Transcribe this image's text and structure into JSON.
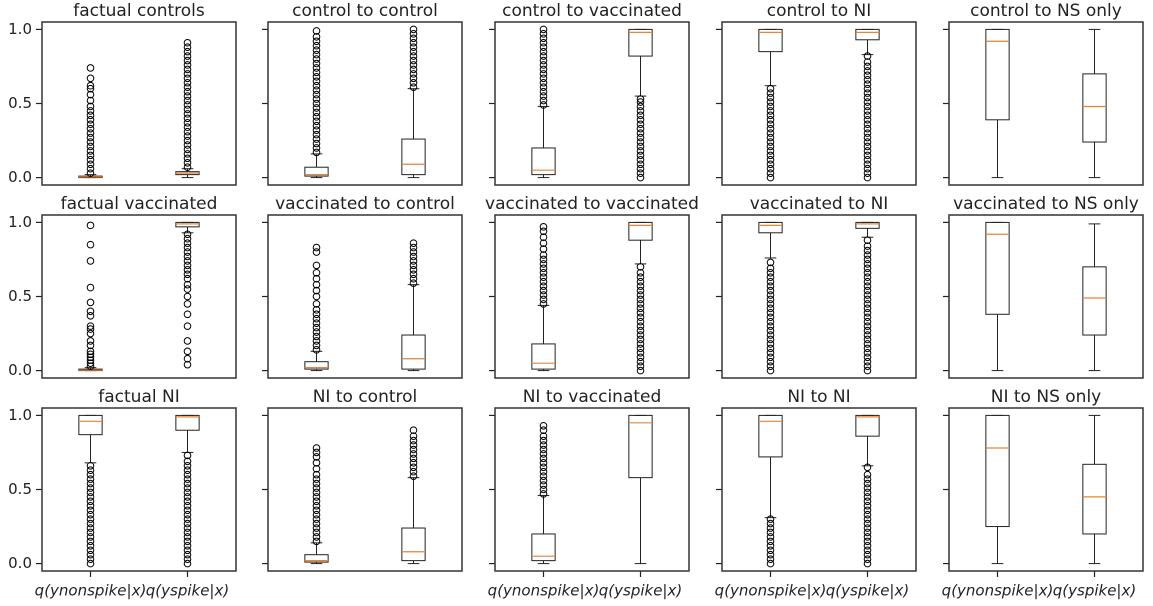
{
  "chart_data": [
    {
      "type": "box",
      "title": "factual controls",
      "categories": [
        null,
        null
      ],
      "ylim": [
        -0.05,
        1.05
      ],
      "yticks": [
        {
          "value": 0,
          "label": "0.0"
        },
        {
          "value": 0.5,
          "label": "0.5"
        },
        {
          "value": 1,
          "label": "1.0"
        }
      ],
      "box_color": "#222222",
      "median_color": "#e8833a",
      "boxes": [
        {
          "whislo": 0,
          "q1": 0,
          "med": 0.005,
          "q3": 0.01,
          "whishi": 0.02,
          "fliers": [
            0.03,
            0.06,
            0.09,
            0.12,
            0.15,
            0.18,
            0.21,
            0.24,
            0.27,
            0.3,
            0.33,
            0.36,
            0.39,
            0.42,
            0.45,
            0.48,
            0.52,
            0.56,
            0.6,
            0.62,
            0.67,
            0.74
          ]
        },
        {
          "whislo": 0,
          "q1": 0.02,
          "med": 0.03,
          "q3": 0.04,
          "whishi": 0.06,
          "fliers": [
            0.07,
            0.1,
            0.13,
            0.16,
            0.19,
            0.22,
            0.25,
            0.28,
            0.31,
            0.34,
            0.37,
            0.4,
            0.43,
            0.46,
            0.49,
            0.52,
            0.55,
            0.58,
            0.61,
            0.64,
            0.67,
            0.7,
            0.73,
            0.76,
            0.79,
            0.82,
            0.85,
            0.88,
            0.91
          ]
        }
      ]
    },
    {
      "type": "box",
      "title": "control to control",
      "categories": [
        null,
        null
      ],
      "ylim": [
        -0.05,
        1.05
      ],
      "yticks": [
        0,
        0.5,
        1
      ],
      "box_color": "#222222",
      "median_color": "#e8833a",
      "boxes": [
        {
          "whislo": 0,
          "q1": 0.01,
          "med": 0.02,
          "q3": 0.07,
          "whishi": 0.16,
          "fliers": [
            0.17,
            0.2,
            0.23,
            0.26,
            0.29,
            0.32,
            0.35,
            0.38,
            0.41,
            0.44,
            0.47,
            0.5,
            0.53,
            0.56,
            0.59,
            0.62,
            0.65,
            0.68,
            0.71,
            0.74,
            0.77,
            0.8,
            0.83,
            0.86,
            0.89,
            0.92,
            0.95,
            0.99
          ]
        },
        {
          "whislo": 0,
          "q1": 0.02,
          "med": 0.09,
          "q3": 0.26,
          "whishi": 0.6,
          "fliers": [
            0.61,
            0.64,
            0.67,
            0.7,
            0.73,
            0.76,
            0.79,
            0.82,
            0.85,
            0.88,
            0.91,
            0.94,
            0.97,
            1
          ]
        }
      ]
    },
    {
      "type": "box",
      "title": "control to vaccinated",
      "categories": [
        null,
        null
      ],
      "ylim": [
        -0.05,
        1.05
      ],
      "yticks": [
        0,
        0.5,
        1
      ],
      "box_color": "#222222",
      "median_color": "#e8833a",
      "boxes": [
        {
          "whislo": 0,
          "q1": 0.02,
          "med": 0.05,
          "q3": 0.2,
          "whishi": 0.48,
          "fliers": [
            0.49,
            0.52,
            0.55,
            0.58,
            0.61,
            0.64,
            0.67,
            0.7,
            0.73,
            0.76,
            0.79,
            0.82,
            0.85,
            0.88,
            0.91,
            0.94,
            0.97,
            1
          ]
        },
        {
          "whislo": 0.55,
          "q1": 0.82,
          "med": 0.98,
          "q3": 1,
          "whishi": 1,
          "fliers": [
            0,
            0.03,
            0.06,
            0.09,
            0.12,
            0.15,
            0.18,
            0.21,
            0.24,
            0.27,
            0.3,
            0.33,
            0.36,
            0.39,
            0.42,
            0.45,
            0.48,
            0.51,
            0.53
          ]
        }
      ]
    },
    {
      "type": "box",
      "title": "control to NI",
      "categories": [
        null,
        null
      ],
      "ylim": [
        -0.05,
        1.05
      ],
      "yticks": [
        0,
        0.5,
        1
      ],
      "box_color": "#222222",
      "median_color": "#e8833a",
      "boxes": [
        {
          "whislo": 0.62,
          "q1": 0.85,
          "med": 0.98,
          "q3": 1,
          "whishi": 1,
          "fliers": [
            0,
            0.03,
            0.06,
            0.09,
            0.12,
            0.15,
            0.18,
            0.21,
            0.24,
            0.27,
            0.3,
            0.33,
            0.36,
            0.39,
            0.42,
            0.45,
            0.48,
            0.51,
            0.54,
            0.57,
            0.6
          ]
        },
        {
          "whislo": 0.83,
          "q1": 0.93,
          "med": 0.98,
          "q3": 1,
          "whishi": 1,
          "fliers": [
            0,
            0.03,
            0.06,
            0.09,
            0.12,
            0.15,
            0.18,
            0.21,
            0.24,
            0.27,
            0.3,
            0.33,
            0.36,
            0.39,
            0.42,
            0.45,
            0.48,
            0.51,
            0.54,
            0.57,
            0.6,
            0.63,
            0.66,
            0.69,
            0.72,
            0.75,
            0.78,
            0.82
          ]
        }
      ]
    },
    {
      "type": "box",
      "title": "control to NS only",
      "categories": [
        null,
        null
      ],
      "ylim": [
        -0.05,
        1.05
      ],
      "yticks": [
        0,
        0.5,
        1
      ],
      "box_color": "#222222",
      "median_color": "#e8833a",
      "boxes": [
        {
          "whislo": 0,
          "q1": 0.39,
          "med": 0.92,
          "q3": 1,
          "whishi": 1,
          "fliers": []
        },
        {
          "whislo": 0,
          "q1": 0.24,
          "med": 0.48,
          "q3": 0.7,
          "whishi": 1,
          "fliers": []
        }
      ]
    },
    {
      "type": "box",
      "title": "factual vaccinated",
      "categories": [
        null,
        null
      ],
      "ylim": [
        -0.05,
        1.05
      ],
      "yticks": [
        {
          "value": 0,
          "label": "0.0"
        },
        {
          "value": 0.5,
          "label": "0.5"
        },
        {
          "value": 1,
          "label": "1.0"
        }
      ],
      "box_color": "#222222",
      "median_color": "#e8833a",
      "boxes": [
        {
          "whislo": 0,
          "q1": 0,
          "med": 0.003,
          "q3": 0.01,
          "whishi": 0.02,
          "fliers": [
            0.03,
            0.05,
            0.07,
            0.09,
            0.11,
            0.13,
            0.17,
            0.2,
            0.25,
            0.28,
            0.3,
            0.37,
            0.4,
            0.46,
            0.56,
            0.74,
            0.85,
            0.98
          ]
        },
        {
          "whislo": 0.93,
          "q1": 0.97,
          "med": 0.99,
          "q3": 1,
          "whishi": 1,
          "fliers": [
            0.04,
            0.08,
            0.13,
            0.2,
            0.3,
            0.38,
            0.45,
            0.5,
            0.55,
            0.58,
            0.62,
            0.65,
            0.68,
            0.71,
            0.74,
            0.77,
            0.8,
            0.83,
            0.86,
            0.89,
            0.92
          ]
        }
      ]
    },
    {
      "type": "box",
      "title": "vaccinated to control",
      "categories": [
        null,
        null
      ],
      "ylim": [
        -0.05,
        1.05
      ],
      "yticks": [
        0,
        0.5,
        1
      ],
      "box_color": "#222222",
      "median_color": "#e8833a",
      "boxes": [
        {
          "whislo": 0,
          "q1": 0.01,
          "med": 0.02,
          "q3": 0.06,
          "whishi": 0.13,
          "fliers": [
            0.14,
            0.17,
            0.2,
            0.23,
            0.26,
            0.29,
            0.32,
            0.35,
            0.38,
            0.41,
            0.45,
            0.5,
            0.54,
            0.58,
            0.62,
            0.66,
            0.71,
            0.8,
            0.83
          ]
        },
        {
          "whislo": 0,
          "q1": 0.01,
          "med": 0.08,
          "q3": 0.24,
          "whishi": 0.58,
          "fliers": [
            0.59,
            0.62,
            0.65,
            0.68,
            0.71,
            0.74,
            0.77,
            0.8,
            0.83,
            0.86
          ]
        }
      ]
    },
    {
      "type": "box",
      "title": "vaccinated to vaccinated",
      "categories": [
        null,
        null
      ],
      "ylim": [
        -0.05,
        1.05
      ],
      "yticks": [
        0,
        0.5,
        1
      ],
      "box_color": "#222222",
      "median_color": "#e8833a",
      "boxes": [
        {
          "whislo": 0,
          "q1": 0.01,
          "med": 0.05,
          "q3": 0.18,
          "whishi": 0.44,
          "fliers": [
            0.45,
            0.48,
            0.51,
            0.54,
            0.57,
            0.6,
            0.63,
            0.66,
            0.69,
            0.72,
            0.75,
            0.78,
            0.82,
            0.86,
            0.9,
            0.94,
            0.97
          ]
        },
        {
          "whislo": 0.72,
          "q1": 0.88,
          "med": 0.98,
          "q3": 1,
          "whishi": 1,
          "fliers": [
            0,
            0.03,
            0.06,
            0.09,
            0.12,
            0.15,
            0.18,
            0.21,
            0.24,
            0.27,
            0.3,
            0.33,
            0.36,
            0.39,
            0.42,
            0.45,
            0.48,
            0.51,
            0.54,
            0.57,
            0.6,
            0.63,
            0.66,
            0.7
          ]
        }
      ]
    },
    {
      "type": "box",
      "title": "vaccinated to NI",
      "categories": [
        null,
        null
      ],
      "ylim": [
        -0.05,
        1.05
      ],
      "yticks": [
        0,
        0.5,
        1
      ],
      "box_color": "#222222",
      "median_color": "#e8833a",
      "boxes": [
        {
          "whislo": 0.76,
          "q1": 0.93,
          "med": 0.98,
          "q3": 1,
          "whishi": 1,
          "fliers": [
            0,
            0.03,
            0.06,
            0.09,
            0.12,
            0.15,
            0.18,
            0.21,
            0.24,
            0.27,
            0.3,
            0.33,
            0.36,
            0.39,
            0.42,
            0.45,
            0.48,
            0.51,
            0.54,
            0.57,
            0.6,
            0.63,
            0.66,
            0.69,
            0.73
          ]
        },
        {
          "whislo": 0.9,
          "q1": 0.96,
          "med": 0.99,
          "q3": 1,
          "whishi": 1,
          "fliers": [
            0,
            0.03,
            0.06,
            0.09,
            0.12,
            0.15,
            0.18,
            0.21,
            0.24,
            0.27,
            0.3,
            0.33,
            0.36,
            0.39,
            0.42,
            0.45,
            0.48,
            0.51,
            0.54,
            0.57,
            0.6,
            0.63,
            0.66,
            0.69,
            0.72,
            0.75,
            0.78,
            0.81,
            0.84,
            0.88
          ]
        }
      ]
    },
    {
      "type": "box",
      "title": "vaccinated to NS only",
      "categories": [
        null,
        null
      ],
      "ylim": [
        -0.05,
        1.05
      ],
      "yticks": [
        0,
        0.5,
        1
      ],
      "box_color": "#222222",
      "median_color": "#e8833a",
      "boxes": [
        {
          "whislo": 0,
          "q1": 0.38,
          "med": 0.92,
          "q3": 1,
          "whishi": 1,
          "fliers": []
        },
        {
          "whislo": 0,
          "q1": 0.24,
          "med": 0.49,
          "q3": 0.7,
          "whishi": 0.99,
          "fliers": []
        }
      ]
    },
    {
      "type": "box",
      "title": "factual NI",
      "categories": [
        "q(ynonspike|x)",
        "q(yspike|x)"
      ],
      "ylim": [
        -0.05,
        1.05
      ],
      "yticks": [
        {
          "value": 0,
          "label": "0.0"
        },
        {
          "value": 0.5,
          "label": "0.5"
        },
        {
          "value": 1,
          "label": "1.0"
        }
      ],
      "box_color": "#222222",
      "median_color": "#e8833a",
      "boxes": [
        {
          "whislo": 0.68,
          "q1": 0.87,
          "med": 0.96,
          "q3": 1,
          "whishi": 1,
          "fliers": [
            0,
            0.03,
            0.06,
            0.09,
            0.12,
            0.15,
            0.18,
            0.21,
            0.24,
            0.27,
            0.3,
            0.33,
            0.36,
            0.39,
            0.42,
            0.45,
            0.48,
            0.51,
            0.54,
            0.57,
            0.6,
            0.63,
            0.66
          ]
        },
        {
          "whislo": 0.75,
          "q1": 0.9,
          "med": 0.99,
          "q3": 1,
          "whishi": 1,
          "fliers": [
            0,
            0.03,
            0.06,
            0.09,
            0.12,
            0.15,
            0.18,
            0.21,
            0.24,
            0.27,
            0.3,
            0.33,
            0.36,
            0.39,
            0.42,
            0.45,
            0.48,
            0.51,
            0.54,
            0.57,
            0.6,
            0.63,
            0.66,
            0.69,
            0.73
          ]
        }
      ]
    },
    {
      "type": "box",
      "title": "NI to control",
      "categories": [
        null,
        null
      ],
      "ylim": [
        -0.05,
        1.05
      ],
      "yticks": [
        0,
        0.5,
        1
      ],
      "box_color": "#222222",
      "median_color": "#e8833a",
      "boxes": [
        {
          "whislo": 0,
          "q1": 0.01,
          "med": 0.02,
          "q3": 0.06,
          "whishi": 0.14,
          "fliers": [
            0.15,
            0.18,
            0.21,
            0.24,
            0.27,
            0.3,
            0.33,
            0.36,
            0.39,
            0.42,
            0.45,
            0.48,
            0.51,
            0.54,
            0.57,
            0.6,
            0.64,
            0.68,
            0.72,
            0.75,
            0.78
          ]
        },
        {
          "whislo": 0,
          "q1": 0.02,
          "med": 0.08,
          "q3": 0.24,
          "whishi": 0.58,
          "fliers": [
            0.59,
            0.62,
            0.65,
            0.68,
            0.71,
            0.74,
            0.77,
            0.8,
            0.83,
            0.86,
            0.9
          ]
        }
      ]
    },
    {
      "type": "box",
      "title": "NI to vaccinated",
      "categories": [
        "q(ynonspike|x)",
        "q(yspike|x)"
      ],
      "ylim": [
        -0.05,
        1.05
      ],
      "yticks": [
        0,
        0.5,
        1
      ],
      "box_color": "#222222",
      "median_color": "#e8833a",
      "boxes": [
        {
          "whislo": 0,
          "q1": 0.02,
          "med": 0.05,
          "q3": 0.2,
          "whishi": 0.46,
          "fliers": [
            0.47,
            0.5,
            0.53,
            0.56,
            0.59,
            0.62,
            0.65,
            0.68,
            0.71,
            0.74,
            0.77,
            0.8,
            0.83,
            0.86,
            0.9,
            0.93
          ]
        },
        {
          "whislo": 0,
          "q1": 0.58,
          "med": 0.95,
          "q3": 1,
          "whishi": 1,
          "fliers": []
        }
      ]
    },
    {
      "type": "box",
      "title": "NI to NI",
      "categories": [
        "q(ynonspike|x)",
        "q(yspike|x)"
      ],
      "ylim": [
        -0.05,
        1.05
      ],
      "yticks": [
        0,
        0.5,
        1
      ],
      "box_color": "#222222",
      "median_color": "#e8833a",
      "boxes": [
        {
          "whislo": 0.31,
          "q1": 0.72,
          "med": 0.96,
          "q3": 1,
          "whishi": 1,
          "fliers": [
            0,
            0.03,
            0.06,
            0.09,
            0.12,
            0.15,
            0.18,
            0.21,
            0.24,
            0.27,
            0.3
          ]
        },
        {
          "whislo": 0.66,
          "q1": 0.86,
          "med": 0.99,
          "q3": 1,
          "whishi": 1,
          "fliers": [
            0,
            0.03,
            0.06,
            0.09,
            0.12,
            0.15,
            0.18,
            0.21,
            0.24,
            0.27,
            0.3,
            0.33,
            0.36,
            0.39,
            0.42,
            0.45,
            0.48,
            0.51,
            0.54,
            0.57,
            0.6,
            0.65
          ]
        }
      ]
    },
    {
      "type": "box",
      "title": "NI to NS only",
      "categories": [
        "q(ynonspike|x)",
        "q(yspike|x)"
      ],
      "ylim": [
        -0.05,
        1.05
      ],
      "yticks": [
        0,
        0.5,
        1
      ],
      "box_color": "#222222",
      "median_color": "#e8833a",
      "boxes": [
        {
          "whislo": 0,
          "q1": 0.25,
          "med": 0.78,
          "q3": 1,
          "whishi": 1,
          "fliers": []
        },
        {
          "whislo": 0,
          "q1": 0.2,
          "med": 0.45,
          "q3": 0.67,
          "whishi": 1,
          "fliers": []
        }
      ]
    }
  ]
}
